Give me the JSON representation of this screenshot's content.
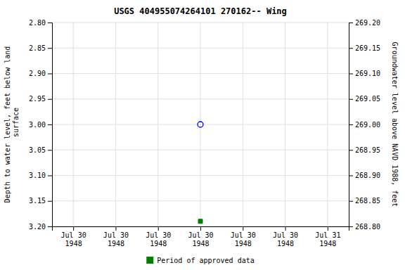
{
  "chart_data": {
    "type": "scatter",
    "title": "USGS 404955074264101 270162-- Wing",
    "y_label": "Depth to water level, feet below land\n surface",
    "y2_label": "Groundwater level above NAVD 1988, feet",
    "categories": [
      "Jul 30\n1948",
      "Jul 30\n1948",
      "Jul 30\n1948",
      "Jul 30\n1948",
      "Jul 30\n1948",
      "Jul 30\n1948",
      "Jul 31\n1948"
    ],
    "series": [
      {
        "color": "#0000ff",
        "marker": "circle-open",
        "values": [
          null,
          null,
          null,
          3.0,
          null,
          null,
          null
        ]
      },
      {
        "name": "Period of approved data",
        "color": "#008000",
        "marker": "square",
        "values": [
          null,
          null,
          null,
          3.19,
          null,
          null,
          null
        ]
      }
    ],
    "ylim": [
      3.2,
      2.8
    ],
    "yticks": [
      {
        "value": 2.8,
        "label": "2.80"
      },
      2.85,
      {
        "value": 2.9,
        "label": "2.90"
      },
      2.95,
      {
        "value": 3.0,
        "label": "3.00"
      },
      3.05,
      {
        "value": 3.1,
        "label": "3.10"
      },
      3.15,
      {
        "value": 3.2,
        "label": "3.20"
      }
    ],
    "y2lim": [
      268.8,
      269.2
    ],
    "y2ticks": [
      {
        "value": 269.2,
        "label": "269.20"
      },
      269.15,
      {
        "value": 269.1,
        "label": "269.10"
      },
      269.05,
      {
        "value": 269.0,
        "label": "269.00"
      },
      268.95,
      {
        "value": 268.9,
        "label": "268.90"
      },
      268.85,
      {
        "value": 268.8,
        "label": "268.80"
      }
    ],
    "grid": true,
    "legend": "bottom"
  }
}
